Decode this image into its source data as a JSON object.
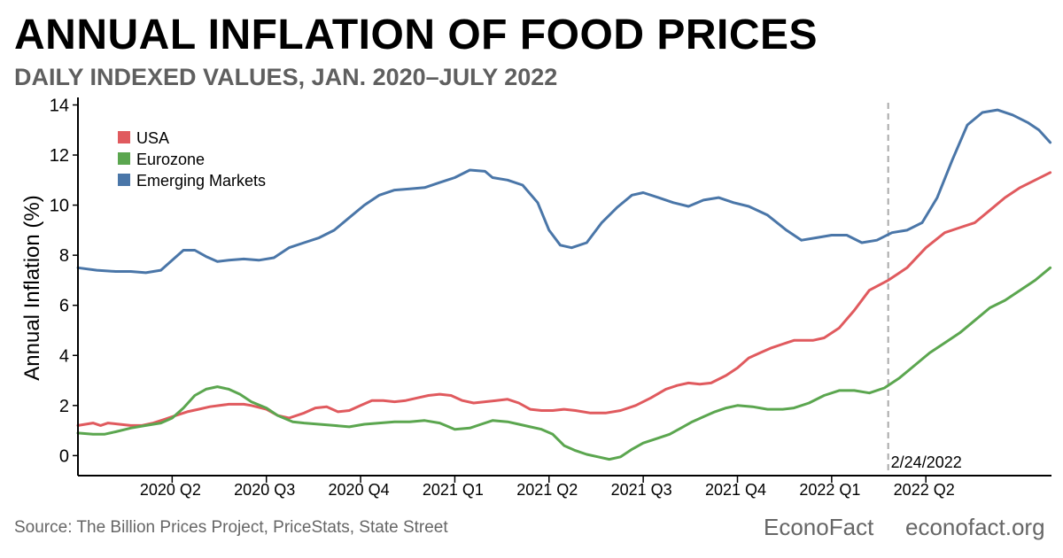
{
  "title": "ANNUAL INFLATION OF FOOD PRICES",
  "subtitle": "DAILY INDEXED VALUES, JAN. 2020–JULY 2022",
  "source": "Source: The Billion Prices Project, PriceStats, State Street",
  "brand": "EconoFact",
  "site": "econofact.org",
  "colors": {
    "usa": "#e05a5e",
    "eurozone": "#5ba64f",
    "emerging": "#4a76a8",
    "event_line": "#aaaaaa"
  },
  "chart_data": {
    "type": "line",
    "title": "ANNUAL INFLATION OF FOOD PRICES",
    "subtitle": "DAILY INDEXED VALUES, JAN. 2020–JULY 2022",
    "xlabel": "",
    "ylabel": "Annual Inflation (%)",
    "ylim": [
      -0.8,
      14.3
    ],
    "yticks": [
      0,
      2,
      4,
      6,
      8,
      10,
      12,
      14
    ],
    "xlim": [
      0,
      2.5833
    ],
    "x_unit": "years since Jan. 1, 2020",
    "xticks": [
      {
        "x": 0.25,
        "label": "2020 Q2"
      },
      {
        "x": 0.5,
        "label": "2020 Q3"
      },
      {
        "x": 0.75,
        "label": "2020 Q4"
      },
      {
        "x": 1.0,
        "label": "2021 Q1"
      },
      {
        "x": 1.25,
        "label": "2021 Q2"
      },
      {
        "x": 1.5,
        "label": "2021 Q3"
      },
      {
        "x": 1.75,
        "label": "2021 Q4"
      },
      {
        "x": 2.0,
        "label": "2022 Q1"
      },
      {
        "x": 2.25,
        "label": "2022 Q2"
      }
    ],
    "legend_position": "top-left",
    "annotation": {
      "x": 2.15,
      "label": "2/24/2022"
    },
    "series": [
      {
        "name": "USA",
        "color": "#e05a5e",
        "x": [
          0,
          0.04,
          0.06,
          0.08,
          0.11,
          0.14,
          0.17,
          0.2,
          0.23,
          0.26,
          0.29,
          0.32,
          0.35,
          0.4,
          0.44,
          0.46,
          0.5,
          0.53,
          0.56,
          0.6,
          0.63,
          0.66,
          0.69,
          0.72,
          0.75,
          0.78,
          0.81,
          0.84,
          0.87,
          0.9,
          0.93,
          0.96,
          0.99,
          1.02,
          1.05,
          1.08,
          1.11,
          1.14,
          1.17,
          1.2,
          1.23,
          1.26,
          1.29,
          1.32,
          1.36,
          1.4,
          1.44,
          1.48,
          1.52,
          1.56,
          1.59,
          1.62,
          1.65,
          1.68,
          1.72,
          1.75,
          1.78,
          1.81,
          1.84,
          1.87,
          1.9,
          1.95,
          1.98,
          2.02,
          2.06,
          2.1,
          2.15,
          2.2,
          2.25,
          2.3,
          2.34,
          2.38,
          2.42,
          2.46,
          2.5,
          2.54,
          2.58
        ],
        "values": [
          1.2,
          1.3,
          1.2,
          1.3,
          1.25,
          1.2,
          1.2,
          1.3,
          1.45,
          1.6,
          1.75,
          1.85,
          1.95,
          2.05,
          2.05,
          2.0,
          1.85,
          1.6,
          1.5,
          1.7,
          1.9,
          1.95,
          1.75,
          1.8,
          2.0,
          2.2,
          2.2,
          2.15,
          2.2,
          2.3,
          2.4,
          2.45,
          2.4,
          2.2,
          2.1,
          2.15,
          2.2,
          2.25,
          2.1,
          1.85,
          1.8,
          1.8,
          1.85,
          1.8,
          1.7,
          1.7,
          1.8,
          2.0,
          2.3,
          2.65,
          2.8,
          2.9,
          2.85,
          2.9,
          3.2,
          3.5,
          3.9,
          4.1,
          4.3,
          4.45,
          4.6,
          4.6,
          4.7,
          5.1,
          5.8,
          6.6,
          7.0,
          7.5,
          8.3,
          8.9,
          9.1,
          9.3,
          9.8,
          10.3,
          10.7,
          11.0,
          11.3
        ]
      },
      {
        "name": "Eurozone",
        "color": "#5ba64f",
        "x": [
          0,
          0.04,
          0.07,
          0.1,
          0.14,
          0.18,
          0.22,
          0.25,
          0.28,
          0.31,
          0.34,
          0.37,
          0.4,
          0.43,
          0.46,
          0.5,
          0.53,
          0.57,
          0.6,
          0.64,
          0.68,
          0.72,
          0.76,
          0.8,
          0.84,
          0.88,
          0.92,
          0.96,
          1.0,
          1.04,
          1.07,
          1.1,
          1.14,
          1.17,
          1.2,
          1.23,
          1.26,
          1.29,
          1.32,
          1.35,
          1.38,
          1.41,
          1.44,
          1.47,
          1.5,
          1.54,
          1.57,
          1.6,
          1.63,
          1.66,
          1.69,
          1.72,
          1.75,
          1.79,
          1.83,
          1.87,
          1.9,
          1.94,
          1.98,
          2.02,
          2.06,
          2.1,
          2.14,
          2.18,
          2.22,
          2.26,
          2.3,
          2.34,
          2.38,
          2.42,
          2.46,
          2.5,
          2.54,
          2.58
        ],
        "values": [
          0.9,
          0.85,
          0.85,
          0.95,
          1.1,
          1.2,
          1.3,
          1.5,
          1.9,
          2.4,
          2.65,
          2.75,
          2.65,
          2.45,
          2.15,
          1.9,
          1.6,
          1.35,
          1.3,
          1.25,
          1.2,
          1.15,
          1.25,
          1.3,
          1.35,
          1.35,
          1.4,
          1.3,
          1.05,
          1.1,
          1.25,
          1.4,
          1.35,
          1.25,
          1.15,
          1.05,
          0.85,
          0.4,
          0.2,
          0.05,
          -0.05,
          -0.15,
          -0.05,
          0.25,
          0.5,
          0.7,
          0.85,
          1.1,
          1.35,
          1.55,
          1.75,
          1.9,
          2.0,
          1.95,
          1.85,
          1.85,
          1.9,
          2.1,
          2.4,
          2.6,
          2.6,
          2.5,
          2.7,
          3.1,
          3.6,
          4.1,
          4.5,
          4.9,
          5.4,
          5.9,
          6.2,
          6.6,
          7.0,
          7.5
        ]
      },
      {
        "name": "Emerging Markets",
        "color": "#4a76a8",
        "x": [
          0,
          0.05,
          0.1,
          0.14,
          0.18,
          0.22,
          0.25,
          0.28,
          0.31,
          0.34,
          0.37,
          0.4,
          0.44,
          0.48,
          0.52,
          0.56,
          0.6,
          0.64,
          0.68,
          0.72,
          0.76,
          0.8,
          0.84,
          0.88,
          0.92,
          0.96,
          1.0,
          1.04,
          1.08,
          1.1,
          1.14,
          1.18,
          1.22,
          1.25,
          1.28,
          1.31,
          1.35,
          1.39,
          1.43,
          1.47,
          1.5,
          1.54,
          1.58,
          1.62,
          1.66,
          1.7,
          1.74,
          1.78,
          1.83,
          1.88,
          1.92,
          1.96,
          2.0,
          2.04,
          2.08,
          2.12,
          2.16,
          2.2,
          2.24,
          2.28,
          2.32,
          2.36,
          2.4,
          2.44,
          2.48,
          2.52,
          2.55,
          2.58
        ],
        "values": [
          7.5,
          7.4,
          7.35,
          7.35,
          7.3,
          7.4,
          7.8,
          8.2,
          8.2,
          7.95,
          7.75,
          7.8,
          7.85,
          7.8,
          7.9,
          8.3,
          8.5,
          8.7,
          9.0,
          9.5,
          10.0,
          10.4,
          10.6,
          10.65,
          10.7,
          10.9,
          11.1,
          11.4,
          11.35,
          11.1,
          11.0,
          10.8,
          10.1,
          9.0,
          8.4,
          8.3,
          8.5,
          9.3,
          9.9,
          10.4,
          10.5,
          10.3,
          10.1,
          9.95,
          10.2,
          10.3,
          10.1,
          9.95,
          9.6,
          9.0,
          8.6,
          8.7,
          8.8,
          8.8,
          8.5,
          8.6,
          8.9,
          9.0,
          9.3,
          10.3,
          11.8,
          13.2,
          13.7,
          13.8,
          13.6,
          13.3,
          13.0,
          12.5
        ]
      }
    ]
  }
}
